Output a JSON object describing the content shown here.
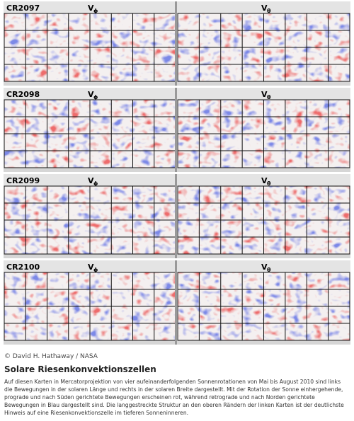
{
  "figure": {
    "rows": [
      {
        "rotation": "CR2097",
        "maps": [
          {
            "symbol": "V",
            "subscript": "ϕ"
          },
          {
            "symbol": "V",
            "subscript": "θ"
          }
        ]
      },
      {
        "rotation": "CR2098",
        "maps": [
          {
            "symbol": "V",
            "subscript": "ϕ"
          },
          {
            "symbol": "V",
            "subscript": "θ"
          }
        ]
      },
      {
        "rotation": "CR2099",
        "maps": [
          {
            "symbol": "V",
            "subscript": "ϕ"
          },
          {
            "symbol": "V",
            "subscript": "θ"
          }
        ]
      },
      {
        "rotation": "CR2100",
        "maps": [
          {
            "symbol": "V",
            "subscript": "ϕ"
          },
          {
            "symbol": "V",
            "subscript": "θ"
          }
        ]
      }
    ]
  },
  "caption": {
    "credit": "© David H. Hathaway / NASA",
    "title": "Solare Riesenkonvektionszellen",
    "text": "Auf diesen Karten in Mercatorprojektion von vier aufeinanderfolgenden Sonnenrotationen von Mai bis August 2010 sind links die Bewegungen in der solaren Länge und rechts in der solaren Breite dargestellt. Mit der Rotation der Sonne einhergehende, prograde und nach Süden gerichtete Bewegungen erscheinen rot, während retrograde und nach Norden gerichtete Bewegungen in Blau dargestellt sind. Die langgestreckte Struktur an den oberen Rändern der linken Karten ist der deutlichste Hinweis auf eine Riesenkonvektionszelle im tieferen Sonneninneren."
  }
}
